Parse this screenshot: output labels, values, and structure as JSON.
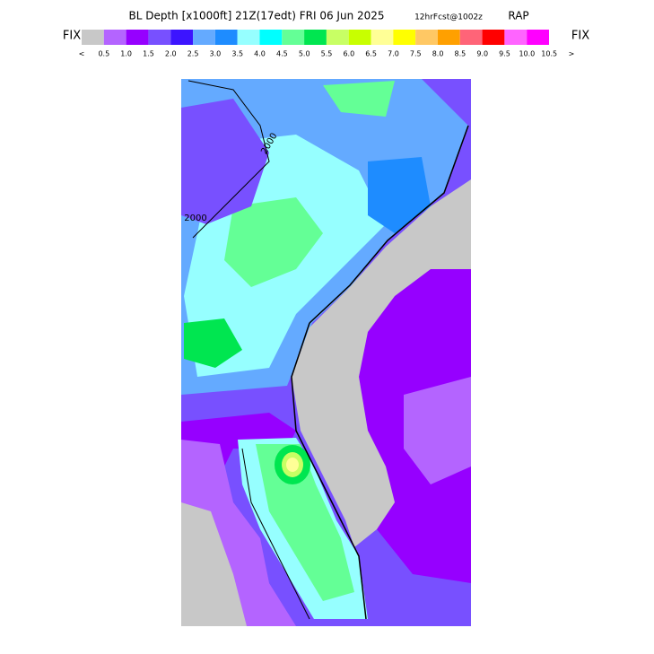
{
  "header": {
    "title": "BL Depth [x1000ft] 21Z(17edt) FRI 06 Jun 2025",
    "subtitle": "12hrFcst@1002z",
    "model": "RAP"
  },
  "colorbar": {
    "left_label": "FIX",
    "right_label": "FIX",
    "colors": [
      "#c8c8c8",
      "#b464ff",
      "#9600ff",
      "#7850ff",
      "#3c14ff",
      "#64aaff",
      "#1e8cff",
      "#96ffff",
      "#00ffff",
      "#64ff96",
      "#00e650",
      "#c8ff64",
      "#c8ff00",
      "#ffff96",
      "#ffff00",
      "#ffc864",
      "#ffa000",
      "#ff6478",
      "#ff0000",
      "#ff64ff",
      "#ff00ff"
    ],
    "labels": [
      "<",
      "0.5",
      "1.0",
      "1.5",
      "2.0",
      "2.5",
      "3.0",
      "3.5",
      "4.0",
      "4.5",
      "5.0",
      "5.5",
      "6.0",
      "6.5",
      "7.0",
      "7.5",
      "8.0",
      "8.5",
      "9.0",
      "9.5",
      "10.0",
      "10.5",
      ">"
    ]
  },
  "map": {
    "contour_labels": [
      "2000",
      "2000"
    ]
  }
}
